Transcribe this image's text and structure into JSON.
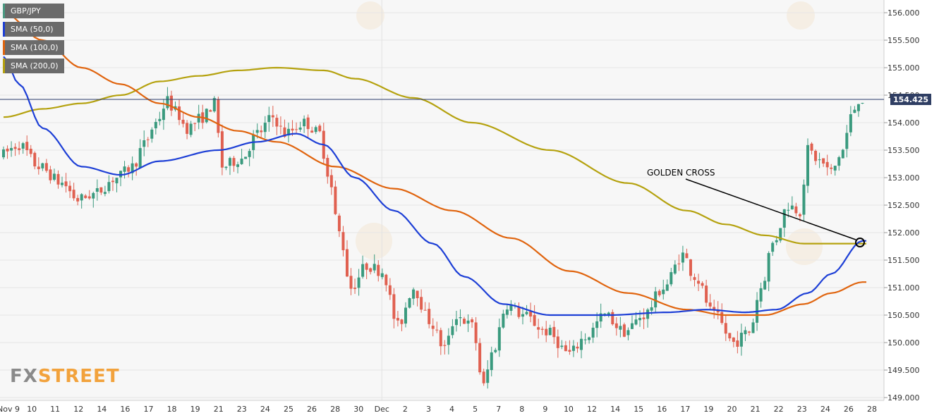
{
  "chart_data": {
    "type": "candlestick",
    "symbol": "GBP/JPY",
    "y_range": [
      149.0,
      156.2
    ],
    "y_ticks": [
      "156.000",
      "155.500",
      "155.000",
      "154.500",
      "154.000",
      "153.500",
      "153.000",
      "152.500",
      "152.000",
      "151.500",
      "151.000",
      "150.500",
      "150.000",
      "149.500",
      "149.000"
    ],
    "x_labels": [
      "Nov 9",
      "10",
      "11",
      "12",
      "14",
      "16",
      "17",
      "18",
      "19",
      "21",
      "23",
      "24",
      "25",
      "26",
      "28",
      "30",
      "Dec",
      "2",
      "3",
      "4",
      "5",
      "7",
      "8",
      "9",
      "10",
      "12",
      "14",
      "15",
      "16",
      "17",
      "19",
      "20",
      "21",
      "22",
      "23",
      "24",
      "26",
      "28"
    ],
    "last_price": "154.425",
    "annotation": "GOLDEN CROSS",
    "legend": [
      {
        "label": "GBP/JPY",
        "color": "#4a9a82"
      },
      {
        "label": "SMA (50,0)",
        "color": "#1d3fd6"
      },
      {
        "label": "SMA (100,0)",
        "color": "#e0640e"
      },
      {
        "label": "SMA (200,0)",
        "color": "#b5a20f"
      }
    ],
    "up_color": "#3a9a7e",
    "down_color": "#e06050",
    "sma_anchors": {
      "sma50": [
        [
          0,
          155.2
        ],
        [
          4,
          154.7
        ],
        [
          10,
          153.9
        ],
        [
          20,
          153.2
        ],
        [
          30,
          153.05
        ],
        [
          40,
          153.3
        ],
        [
          55,
          153.5
        ],
        [
          65,
          153.65
        ],
        [
          75,
          153.8
        ],
        [
          82,
          153.6
        ],
        [
          90,
          153.0
        ],
        [
          100,
          152.4
        ],
        [
          110,
          151.8
        ],
        [
          118,
          151.2
        ],
        [
          128,
          150.7
        ],
        [
          140,
          150.5
        ],
        [
          155,
          150.5
        ],
        [
          170,
          150.55
        ],
        [
          180,
          150.6
        ],
        [
          190,
          150.55
        ],
        [
          198,
          150.6
        ],
        [
          206,
          150.9
        ],
        [
          212,
          151.25
        ],
        [
          220,
          151.85
        ]
      ],
      "sma100": [
        [
          0,
          156.0
        ],
        [
          10,
          155.5
        ],
        [
          20,
          155.0
        ],
        [
          30,
          154.7
        ],
        [
          40,
          154.35
        ],
        [
          50,
          154.1
        ],
        [
          60,
          153.85
        ],
        [
          70,
          153.65
        ],
        [
          85,
          153.2
        ],
        [
          100,
          152.8
        ],
        [
          115,
          152.4
        ],
        [
          130,
          151.9
        ],
        [
          145,
          151.3
        ],
        [
          160,
          150.9
        ],
        [
          175,
          150.6
        ],
        [
          185,
          150.5
        ],
        [
          195,
          150.5
        ],
        [
          205,
          150.7
        ],
        [
          212,
          150.9
        ],
        [
          220,
          151.1
        ]
      ],
      "sma200": [
        [
          0,
          154.1
        ],
        [
          10,
          154.25
        ],
        [
          20,
          154.35
        ],
        [
          30,
          154.5
        ],
        [
          40,
          154.75
        ],
        [
          50,
          154.85
        ],
        [
          60,
          154.95
        ],
        [
          70,
          155.0
        ],
        [
          82,
          154.95
        ],
        [
          90,
          154.8
        ],
        [
          105,
          154.45
        ],
        [
          120,
          154.0
        ],
        [
          140,
          153.5
        ],
        [
          160,
          152.9
        ],
        [
          175,
          152.4
        ],
        [
          185,
          152.15
        ],
        [
          195,
          151.95
        ],
        [
          205,
          151.8
        ],
        [
          220,
          151.8
        ]
      ]
    },
    "price_anchors": [
      [
        0,
        153.4
      ],
      [
        5,
        153.6
      ],
      [
        10,
        153.2
      ],
      [
        16,
        152.9
      ],
      [
        20,
        152.6
      ],
      [
        24,
        152.7
      ],
      [
        30,
        153.0
      ],
      [
        34,
        153.2
      ],
      [
        37,
        153.6
      ],
      [
        40,
        154.0
      ],
      [
        43,
        154.4
      ],
      [
        45,
        154.2
      ],
      [
        48,
        153.9
      ],
      [
        52,
        154.1
      ],
      [
        55,
        154.35
      ],
      [
        57,
        153.2
      ],
      [
        62,
        153.35
      ],
      [
        66,
        153.8
      ],
      [
        70,
        154.1
      ],
      [
        73,
        153.8
      ],
      [
        78,
        154.0
      ],
      [
        82,
        153.8
      ],
      [
        84,
        153.1
      ],
      [
        87,
        152.0
      ],
      [
        90,
        151.0
      ],
      [
        94,
        151.4
      ],
      [
        98,
        151.3
      ],
      [
        102,
        150.3
      ],
      [
        106,
        151.0
      ],
      [
        110,
        150.4
      ],
      [
        114,
        149.9
      ],
      [
        117,
        150.5
      ],
      [
        121,
        150.3
      ],
      [
        124,
        149.2
      ],
      [
        126,
        149.8
      ],
      [
        130,
        150.7
      ],
      [
        134,
        150.5
      ],
      [
        140,
        150.2
      ],
      [
        146,
        149.8
      ],
      [
        150,
        150.1
      ],
      [
        155,
        150.5
      ],
      [
        160,
        150.2
      ],
      [
        165,
        150.5
      ],
      [
        170,
        151.0
      ],
      [
        175,
        151.6
      ],
      [
        178,
        151.2
      ],
      [
        183,
        150.5
      ],
      [
        188,
        150.0
      ],
      [
        192,
        150.2
      ],
      [
        195,
        151.0
      ],
      [
        198,
        151.8
      ],
      [
        202,
        152.5
      ],
      [
        205,
        152.4
      ],
      [
        207,
        153.5
      ],
      [
        210,
        153.3
      ],
      [
        213,
        153.1
      ],
      [
        216,
        153.5
      ],
      [
        218,
        154.1
      ],
      [
        220,
        154.425
      ]
    ]
  }
}
